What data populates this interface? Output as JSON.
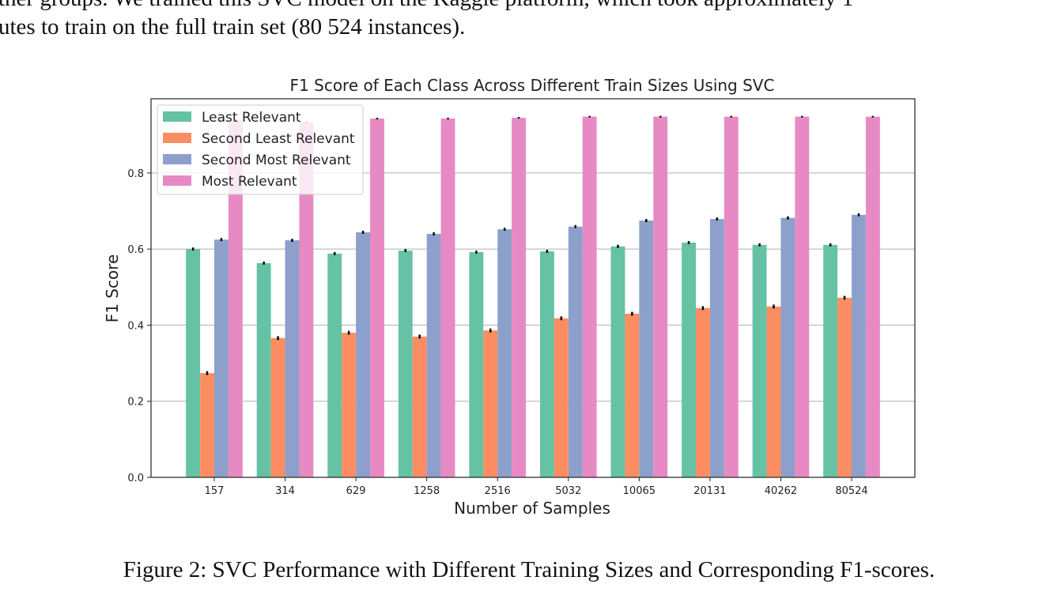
{
  "body_lines": [
    "ther groups. We trained this SVC model on the Kaggle platform, which took approximately 1",
    "utes to train on the full train set (80 524 instances)."
  ],
  "chart_data": {
    "type": "bar",
    "title": "F1 Score of Each Class Across Different Train Sizes Using SVC",
    "x_label": "Number of Samples",
    "y_label": "F1 Score",
    "categories": [
      "157",
      "314",
      "629",
      "1258",
      "2516",
      "5032",
      "10065",
      "20131",
      "40262",
      "80524"
    ],
    "series": [
      {
        "name": "Least Relevant",
        "color": "#66c2a5",
        "values": [
          0.6,
          0.563,
          0.588,
          0.596,
          0.592,
          0.594,
          0.607,
          0.617,
          0.611,
          0.611
        ],
        "errors": [
          0.004,
          0.004,
          0.004,
          0.004,
          0.004,
          0.004,
          0.004,
          0.004,
          0.004,
          0.004
        ]
      },
      {
        "name": "Second Least Relevant",
        "color": "#fc8d62",
        "values": [
          0.274,
          0.366,
          0.38,
          0.37,
          0.386,
          0.418,
          0.43,
          0.445,
          0.449,
          0.472
        ],
        "errors": [
          0.005,
          0.005,
          0.005,
          0.005,
          0.005,
          0.005,
          0.005,
          0.005,
          0.005,
          0.005
        ]
      },
      {
        "name": "Second Most Relevant",
        "color": "#8da0cb",
        "values": [
          0.625,
          0.623,
          0.644,
          0.64,
          0.652,
          0.659,
          0.675,
          0.679,
          0.682,
          0.69
        ],
        "errors": [
          0.004,
          0.004,
          0.004,
          0.004,
          0.004,
          0.004,
          0.004,
          0.004,
          0.004,
          0.004
        ]
      },
      {
        "name": "Most Relevant",
        "color": "#e78ac3",
        "values": [
          0.939,
          0.933,
          0.943,
          0.943,
          0.945,
          0.948,
          0.948,
          0.948,
          0.948,
          0.948
        ],
        "errors": [
          0.002,
          0.002,
          0.002,
          0.002,
          0.002,
          0.002,
          0.002,
          0.002,
          0.002,
          0.002
        ]
      }
    ],
    "ylim": [
      0,
      0.995
    ],
    "yticks": [
      {
        "value": 0,
        "label": "0.0"
      },
      0.2,
      0.4,
      0.6,
      0.8
    ],
    "grid": true,
    "legend": "upper left"
  },
  "caption": "Figure 2: SVC Performance with Different Training Sizes and Corresponding F1-scores."
}
